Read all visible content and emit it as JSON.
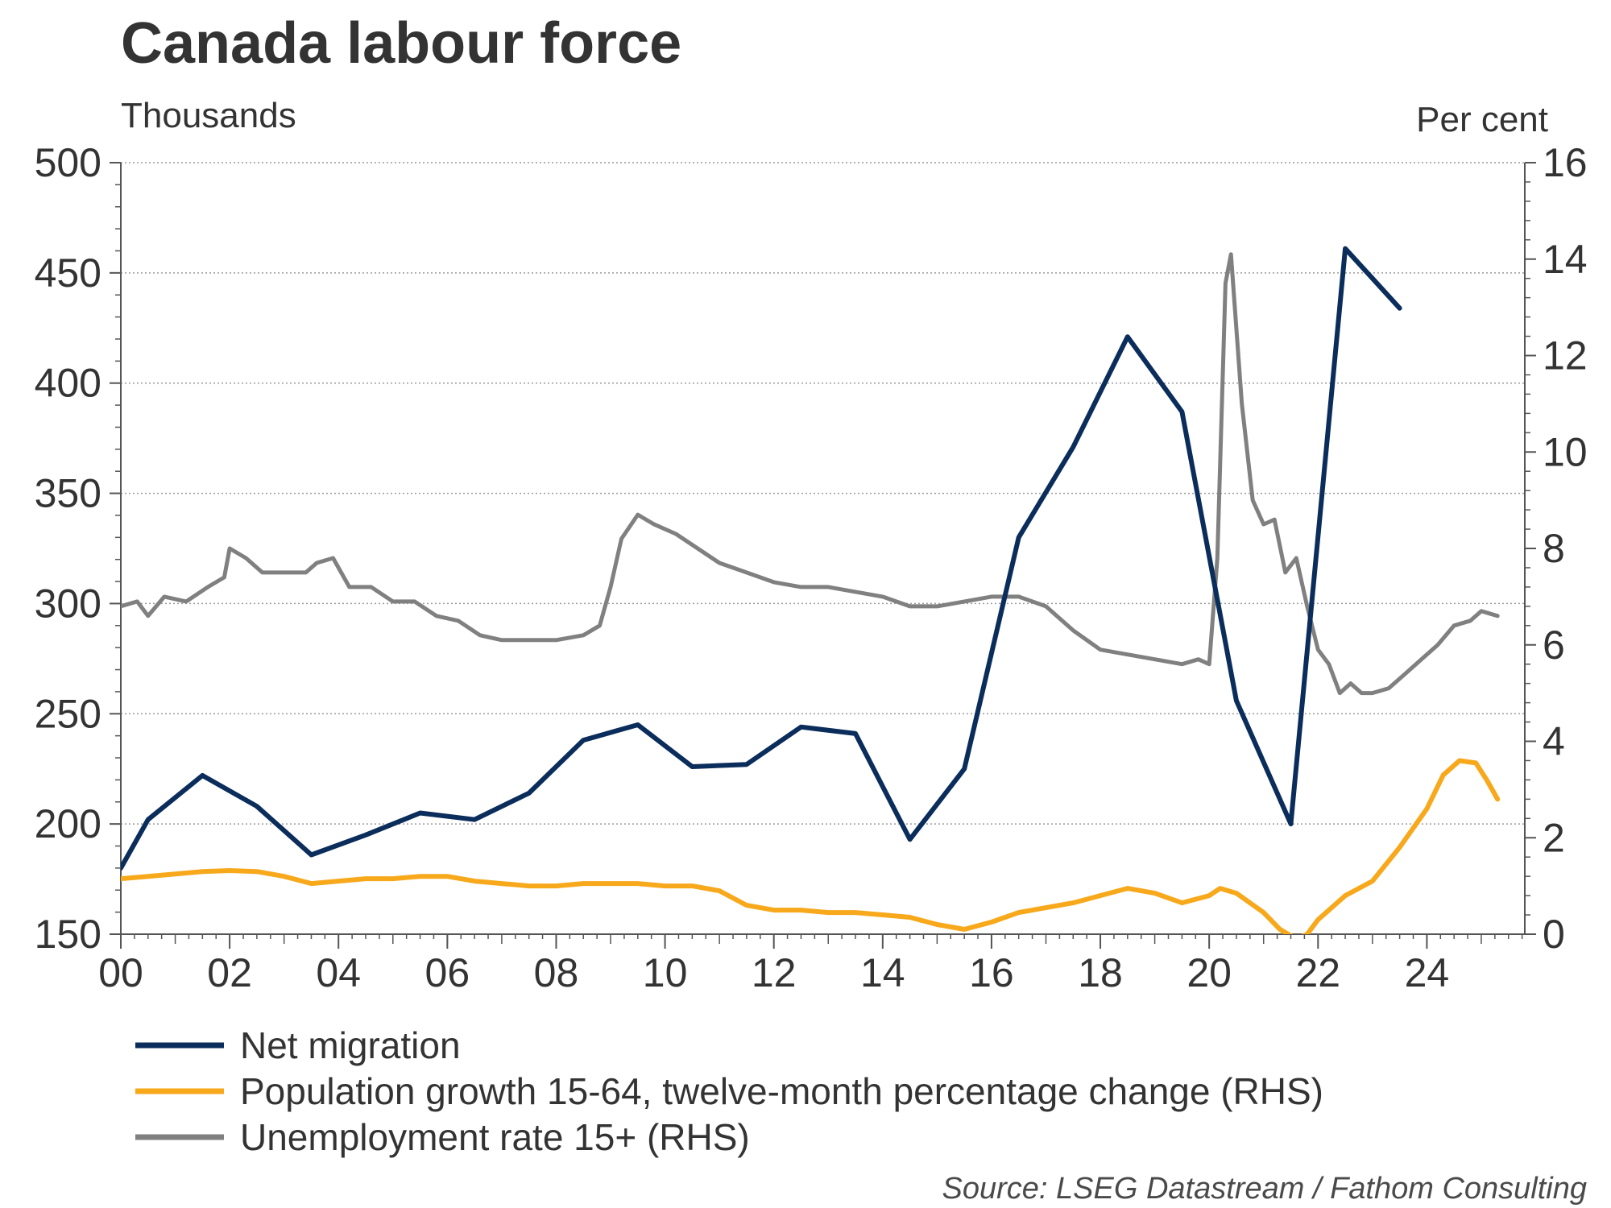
{
  "chart_data": {
    "type": "line",
    "title": "Canada labour force",
    "ylabel_left": "Thousands",
    "ylabel_right": "Per cent",
    "source": "Source: LSEG Datastream / Fathom Consulting",
    "x_tick_labels": [
      "00",
      "02",
      "04",
      "06",
      "08",
      "10",
      "12",
      "14",
      "16",
      "18",
      "20",
      "22",
      "24"
    ],
    "x_tick_values": [
      2000,
      2002,
      2004,
      2006,
      2008,
      2010,
      2012,
      2014,
      2016,
      2018,
      2020,
      2022,
      2024
    ],
    "xlim": [
      2000,
      2025.8
    ],
    "ylim_left": [
      150,
      500
    ],
    "ylim_right": [
      0,
      16
    ],
    "left_ticks": [
      150,
      200,
      250,
      300,
      350,
      400,
      450,
      500
    ],
    "right_ticks": [
      0,
      2,
      4,
      6,
      8,
      10,
      12,
      14,
      16
    ],
    "grid": "horizontal dotted",
    "legend_position": "bottom-left",
    "series": [
      {
        "name": "Net migration",
        "axis": "left",
        "color": "#0b2d5b",
        "points": [
          [
            2000.0,
            180
          ],
          [
            2000.5,
            202
          ],
          [
            2001.5,
            222
          ],
          [
            2002.5,
            208
          ],
          [
            2003.5,
            186
          ],
          [
            2004.5,
            195
          ],
          [
            2005.5,
            205
          ],
          [
            2006.5,
            202
          ],
          [
            2007.5,
            214
          ],
          [
            2008.5,
            238
          ],
          [
            2009.5,
            245
          ],
          [
            2010.5,
            226
          ],
          [
            2011.5,
            227
          ],
          [
            2012.5,
            244
          ],
          [
            2013.5,
            241
          ],
          [
            2014.5,
            193
          ],
          [
            2015.5,
            225
          ],
          [
            2016.5,
            330
          ],
          [
            2017.5,
            371
          ],
          [
            2018.5,
            421
          ],
          [
            2019.5,
            387
          ],
          [
            2020.5,
            256
          ],
          [
            2021.5,
            200
          ],
          [
            2022.5,
            461
          ],
          [
            2023.5,
            434
          ]
        ]
      },
      {
        "name": "Population growth 15-64, twelve-month percentage change (RHS)",
        "axis": "right",
        "color": "#f7a81b",
        "points": [
          [
            2000.0,
            1.15
          ],
          [
            2000.5,
            1.2
          ],
          [
            2001.0,
            1.25
          ],
          [
            2001.5,
            1.3
          ],
          [
            2002.0,
            1.32
          ],
          [
            2002.5,
            1.3
          ],
          [
            2003.0,
            1.2
          ],
          [
            2003.5,
            1.05
          ],
          [
            2004.0,
            1.1
          ],
          [
            2004.5,
            1.15
          ],
          [
            2005.0,
            1.15
          ],
          [
            2005.5,
            1.2
          ],
          [
            2006.0,
            1.2
          ],
          [
            2006.5,
            1.1
          ],
          [
            2007.0,
            1.05
          ],
          [
            2007.5,
            1.0
          ],
          [
            2008.0,
            1.0
          ],
          [
            2008.5,
            1.05
          ],
          [
            2009.0,
            1.05
          ],
          [
            2009.5,
            1.05
          ],
          [
            2010.0,
            1.0
          ],
          [
            2010.5,
            1.0
          ],
          [
            2011.0,
            0.9
          ],
          [
            2011.5,
            0.6
          ],
          [
            2012.0,
            0.5
          ],
          [
            2012.5,
            0.5
          ],
          [
            2013.0,
            0.45
          ],
          [
            2013.5,
            0.45
          ],
          [
            2014.0,
            0.4
          ],
          [
            2014.5,
            0.35
          ],
          [
            2015.0,
            0.2
          ],
          [
            2015.5,
            0.1
          ],
          [
            2016.0,
            0.25
          ],
          [
            2016.5,
            0.45
          ],
          [
            2017.0,
            0.55
          ],
          [
            2017.5,
            0.65
          ],
          [
            2018.0,
            0.8
          ],
          [
            2018.5,
            0.95
          ],
          [
            2019.0,
            0.85
          ],
          [
            2019.5,
            0.65
          ],
          [
            2020.0,
            0.8
          ],
          [
            2020.2,
            0.95
          ],
          [
            2020.5,
            0.85
          ],
          [
            2021.0,
            0.45
          ],
          [
            2021.3,
            0.1
          ],
          [
            2021.6,
            -0.1
          ],
          [
            2021.8,
            0.0
          ],
          [
            2022.0,
            0.3
          ],
          [
            2022.5,
            0.8
          ],
          [
            2023.0,
            1.1
          ],
          [
            2023.5,
            1.8
          ],
          [
            2024.0,
            2.6
          ],
          [
            2024.3,
            3.3
          ],
          [
            2024.6,
            3.6
          ],
          [
            2024.9,
            3.55
          ],
          [
            2025.1,
            3.2
          ],
          [
            2025.3,
            2.8
          ]
        ]
      },
      {
        "name": "Unemployment rate 15+ (RHS)",
        "axis": "right",
        "color": "#808080",
        "points": [
          [
            2000.0,
            6.8
          ],
          [
            2000.3,
            6.9
          ],
          [
            2000.5,
            6.6
          ],
          [
            2000.8,
            7.0
          ],
          [
            2001.2,
            6.9
          ],
          [
            2001.6,
            7.2
          ],
          [
            2001.9,
            7.4
          ],
          [
            2002.0,
            8.0
          ],
          [
            2002.3,
            7.8
          ],
          [
            2002.6,
            7.5
          ],
          [
            2003.0,
            7.5
          ],
          [
            2003.4,
            7.5
          ],
          [
            2003.6,
            7.7
          ],
          [
            2003.9,
            7.8
          ],
          [
            2004.2,
            7.2
          ],
          [
            2004.6,
            7.2
          ],
          [
            2005.0,
            6.9
          ],
          [
            2005.4,
            6.9
          ],
          [
            2005.8,
            6.6
          ],
          [
            2006.2,
            6.5
          ],
          [
            2006.6,
            6.2
          ],
          [
            2007.0,
            6.1
          ],
          [
            2007.5,
            6.1
          ],
          [
            2008.0,
            6.1
          ],
          [
            2008.5,
            6.2
          ],
          [
            2008.8,
            6.4
          ],
          [
            2009.0,
            7.2
          ],
          [
            2009.2,
            8.2
          ],
          [
            2009.5,
            8.7
          ],
          [
            2009.8,
            8.5
          ],
          [
            2010.2,
            8.3
          ],
          [
            2010.6,
            8.0
          ],
          [
            2011.0,
            7.7
          ],
          [
            2011.5,
            7.5
          ],
          [
            2012.0,
            7.3
          ],
          [
            2012.5,
            7.2
          ],
          [
            2013.0,
            7.2
          ],
          [
            2013.5,
            7.1
          ],
          [
            2014.0,
            7.0
          ],
          [
            2014.5,
            6.8
          ],
          [
            2015.0,
            6.8
          ],
          [
            2015.5,
            6.9
          ],
          [
            2016.0,
            7.0
          ],
          [
            2016.5,
            7.0
          ],
          [
            2017.0,
            6.8
          ],
          [
            2017.5,
            6.3
          ],
          [
            2018.0,
            5.9
          ],
          [
            2018.5,
            5.8
          ],
          [
            2019.0,
            5.7
          ],
          [
            2019.5,
            5.6
          ],
          [
            2019.8,
            5.7
          ],
          [
            2020.0,
            5.6
          ],
          [
            2020.15,
            7.8
          ],
          [
            2020.3,
            13.5
          ],
          [
            2020.4,
            14.1
          ],
          [
            2020.6,
            11.0
          ],
          [
            2020.8,
            9.0
          ],
          [
            2021.0,
            8.5
          ],
          [
            2021.2,
            8.6
          ],
          [
            2021.4,
            7.5
          ],
          [
            2021.6,
            7.8
          ],
          [
            2021.8,
            6.8
          ],
          [
            2022.0,
            5.9
          ],
          [
            2022.2,
            5.6
          ],
          [
            2022.4,
            5.0
          ],
          [
            2022.6,
            5.2
          ],
          [
            2022.8,
            5.0
          ],
          [
            2023.0,
            5.0
          ],
          [
            2023.3,
            5.1
          ],
          [
            2023.6,
            5.4
          ],
          [
            2023.9,
            5.7
          ],
          [
            2024.2,
            6.0
          ],
          [
            2024.5,
            6.4
          ],
          [
            2024.8,
            6.5
          ],
          [
            2025.0,
            6.7
          ],
          [
            2025.3,
            6.6
          ]
        ]
      }
    ]
  }
}
